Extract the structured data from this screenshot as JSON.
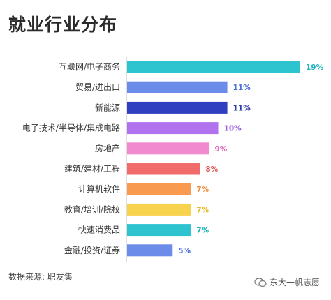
{
  "page": {
    "title": "就业行业分布",
    "source": "数据来源: 职友集",
    "watermark": "东大一帆志愿"
  },
  "chart_data": {
    "type": "bar",
    "orientation": "horizontal",
    "title": "就业行业分布",
    "xlabel": "",
    "ylabel": "",
    "xlim": [
      0,
      19
    ],
    "grid": false,
    "categories": [
      "互联网/电子商务",
      "贸易/进出口",
      "新能源",
      "电子技术/半导体/集成电路",
      "房地产",
      "建筑/建材/工程",
      "计算机软件",
      "教育/培训/院校",
      "快速消费品",
      "金融/投资/证券"
    ],
    "values": [
      19,
      11,
      11,
      10,
      9,
      8,
      7,
      7,
      7,
      5
    ],
    "value_labels": [
      "19%",
      "11%",
      "11%",
      "10%",
      "9%",
      "8%",
      "7%",
      "7%",
      "7%",
      "5%"
    ],
    "bar_colors": [
      "#2ec4cf",
      "#6b8ce8",
      "#2f3fbf",
      "#b072ee",
      "#f28ad0",
      "#f26b6b",
      "#f89a4f",
      "#f6d24d",
      "#2ec4cf",
      "#6b8ce8"
    ],
    "label_colors": [
      "#1fb3bd",
      "#4a6fd8",
      "#2a3aa8",
      "#9a5ae0",
      "#e066b8",
      "#e05050",
      "#f08a3a",
      "#e8b820",
      "#1fb3bd",
      "#4a6fd8"
    ]
  }
}
